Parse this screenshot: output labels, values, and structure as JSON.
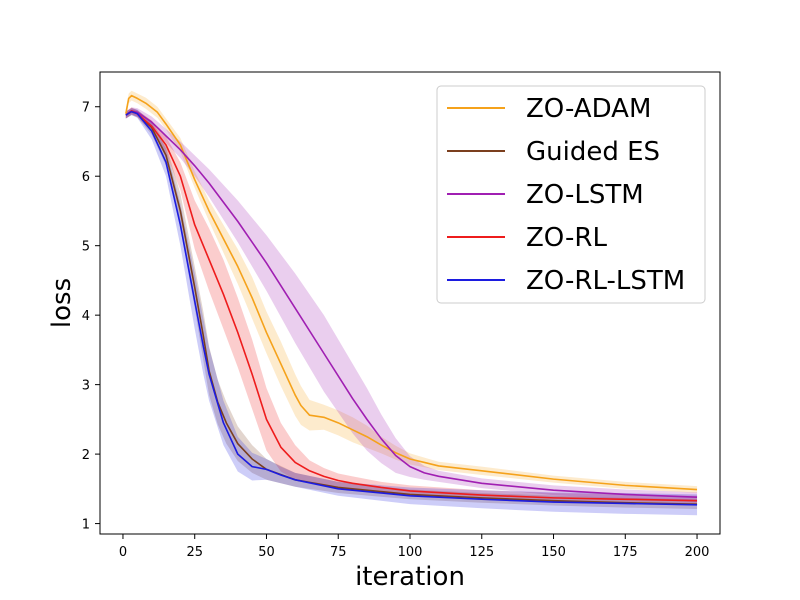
{
  "chart_data": {
    "type": "line",
    "title": "",
    "xlabel": "iteration",
    "ylabel": "loss",
    "xlim": [
      -8,
      208
    ],
    "ylim": [
      0.85,
      7.5
    ],
    "xticks": [
      0,
      25,
      50,
      75,
      100,
      125,
      150,
      175,
      200
    ],
    "yticks": [
      1,
      2,
      3,
      4,
      5,
      6,
      7
    ],
    "legend_position": "top-right",
    "series": [
      {
        "name": "ZO-ADAM",
        "color": "#f5a21b",
        "x": [
          1,
          2,
          3,
          5,
          8,
          12,
          15,
          20,
          25,
          30,
          35,
          40,
          45,
          50,
          55,
          60,
          62,
          65,
          70,
          75,
          80,
          85,
          90,
          95,
          100,
          105,
          110,
          125,
          150,
          175,
          200
        ],
        "y": [
          6.9,
          7.12,
          7.16,
          7.12,
          7.05,
          6.92,
          6.75,
          6.45,
          5.95,
          5.5,
          5.1,
          4.7,
          4.25,
          3.75,
          3.3,
          2.85,
          2.7,
          2.56,
          2.53,
          2.45,
          2.35,
          2.25,
          2.13,
          2.02,
          1.93,
          1.88,
          1.83,
          1.76,
          1.64,
          1.55,
          1.49
        ],
        "band": [
          0.07,
          0.07,
          0.07,
          0.07,
          0.08,
          0.08,
          0.08,
          0.1,
          0.12,
          0.15,
          0.2,
          0.25,
          0.3,
          0.3,
          0.32,
          0.3,
          0.28,
          0.22,
          0.18,
          0.18,
          0.18,
          0.16,
          0.12,
          0.1,
          0.08,
          0.07,
          0.06,
          0.06,
          0.05,
          0.05,
          0.05
        ]
      },
      {
        "name": "Guided ES",
        "color": "#7b3f1e",
        "x": [
          1,
          3,
          5,
          10,
          15,
          20,
          25,
          28,
          30,
          33,
          36,
          40,
          45,
          50,
          60,
          75,
          100,
          125,
          150,
          175,
          200
        ],
        "y": [
          6.88,
          6.93,
          6.9,
          6.7,
          6.3,
          5.5,
          4.4,
          3.7,
          3.2,
          2.75,
          2.45,
          2.15,
          1.93,
          1.78,
          1.63,
          1.52,
          1.42,
          1.37,
          1.33,
          1.3,
          1.28
        ],
        "band": [
          0.05,
          0.05,
          0.05,
          0.1,
          0.15,
          0.25,
          0.3,
          0.35,
          0.35,
          0.32,
          0.3,
          0.25,
          0.2,
          0.15,
          0.1,
          0.08,
          0.07,
          0.07,
          0.07,
          0.07,
          0.07
        ]
      },
      {
        "name": "ZO-LSTM",
        "color": "#a01fb2",
        "x": [
          1,
          3,
          5,
          10,
          15,
          20,
          25,
          30,
          40,
          50,
          60,
          70,
          80,
          85,
          90,
          95,
          100,
          105,
          110,
          125,
          150,
          175,
          200
        ],
        "y": [
          6.88,
          6.94,
          6.92,
          6.78,
          6.58,
          6.38,
          6.15,
          5.9,
          5.35,
          4.75,
          4.1,
          3.45,
          2.8,
          2.5,
          2.22,
          1.98,
          1.82,
          1.73,
          1.68,
          1.58,
          1.48,
          1.42,
          1.38
        ],
        "band": [
          0.05,
          0.05,
          0.06,
          0.08,
          0.1,
          0.12,
          0.15,
          0.2,
          0.3,
          0.4,
          0.5,
          0.55,
          0.5,
          0.45,
          0.35,
          0.25,
          0.15,
          0.1,
          0.08,
          0.07,
          0.07,
          0.07,
          0.07
        ]
      },
      {
        "name": "ZO-RL",
        "color": "#ee1c1c",
        "x": [
          1,
          3,
          5,
          10,
          15,
          20,
          25,
          30,
          35,
          40,
          45,
          50,
          55,
          60,
          65,
          70,
          75,
          80,
          90,
          100,
          125,
          150,
          175,
          200
        ],
        "y": [
          6.88,
          6.94,
          6.9,
          6.72,
          6.45,
          6.0,
          5.3,
          4.8,
          4.3,
          3.75,
          3.15,
          2.5,
          2.1,
          1.88,
          1.76,
          1.68,
          1.62,
          1.58,
          1.52,
          1.47,
          1.41,
          1.37,
          1.35,
          1.33
        ],
        "band": [
          0.05,
          0.05,
          0.05,
          0.08,
          0.12,
          0.2,
          0.35,
          0.45,
          0.5,
          0.5,
          0.5,
          0.45,
          0.35,
          0.25,
          0.15,
          0.12,
          0.1,
          0.1,
          0.08,
          0.08,
          0.07,
          0.07,
          0.07,
          0.07
        ]
      },
      {
        "name": "ZO-RL-LSTM",
        "color": "#1c1ce0",
        "x": [
          1,
          3,
          5,
          10,
          15,
          20,
          25,
          28,
          30,
          35,
          40,
          45,
          50,
          55,
          60,
          75,
          100,
          125,
          150,
          175,
          200
        ],
        "y": [
          6.88,
          6.93,
          6.9,
          6.65,
          6.2,
          5.3,
          4.2,
          3.55,
          3.15,
          2.45,
          2.0,
          1.82,
          1.78,
          1.7,
          1.63,
          1.5,
          1.4,
          1.35,
          1.31,
          1.29,
          1.27
        ],
        "band": [
          0.05,
          0.05,
          0.06,
          0.12,
          0.2,
          0.3,
          0.4,
          0.4,
          0.38,
          0.32,
          0.25,
          0.2,
          0.15,
          0.12,
          0.1,
          0.1,
          0.12,
          0.13,
          0.14,
          0.15,
          0.15
        ]
      }
    ]
  }
}
